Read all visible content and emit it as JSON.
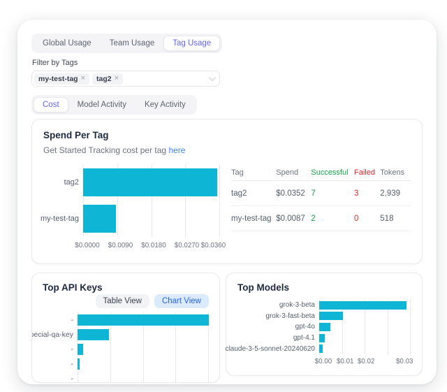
{
  "tabs_primary": {
    "items": [
      {
        "label": "Global Usage",
        "active": false
      },
      {
        "label": "Team Usage",
        "active": false
      },
      {
        "label": "Tag Usage",
        "active": true
      }
    ]
  },
  "filter": {
    "label": "Filter by Tags",
    "chips": [
      {
        "label": "my-test-tag"
      },
      {
        "label": "tag2"
      }
    ]
  },
  "icons": {
    "close": "×",
    "chevron_down": "chevron-down"
  },
  "tabs_secondary": {
    "items": [
      {
        "label": "Cost",
        "active": true
      },
      {
        "label": "Model Activity",
        "active": false
      },
      {
        "label": "Key Activity",
        "active": false
      }
    ]
  },
  "spend_card": {
    "title": "Spend Per Tag",
    "subtitle_text": "Get Started Tracking cost per tag",
    "subtitle_link": "here",
    "table": {
      "headers": [
        {
          "label": "Tag",
          "tone": "default"
        },
        {
          "label": "Spend",
          "tone": "default"
        },
        {
          "label": "Successful",
          "tone": "green"
        },
        {
          "label": "Failed",
          "tone": "red"
        },
        {
          "label": "Tokens",
          "tone": "default"
        }
      ],
      "rows": [
        {
          "cells": [
            {
              "text": "tag2",
              "tone": "default"
            },
            {
              "text": "$0.0352",
              "tone": "default"
            },
            {
              "text": "7",
              "tone": "green"
            },
            {
              "text": "3",
              "tone": "red"
            },
            {
              "text": "2,939",
              "tone": "default"
            }
          ]
        },
        {
          "cells": [
            {
              "text": "my-test-tag",
              "tone": "default"
            },
            {
              "text": "$0.0087",
              "tone": "default"
            },
            {
              "text": "2",
              "tone": "green"
            },
            {
              "text": "0",
              "tone": "red"
            },
            {
              "text": "518",
              "tone": "default"
            }
          ]
        }
      ]
    }
  },
  "top_api_keys": {
    "title": "Top API Keys",
    "view_buttons": [
      {
        "label": "Table View",
        "active": false
      },
      {
        "label": "Chart View",
        "active": true
      }
    ]
  },
  "top_models": {
    "title": "Top Models"
  },
  "colors": {
    "accent_indigo": "#6366f1",
    "bar_cyan": "#0eb5d5",
    "link_blue": "#3b82f6",
    "success_green": "#16a34a",
    "fail_red": "#dc2626",
    "toggle_active_bg": "#dbeafe",
    "toggle_active_text": "#2563eb"
  },
  "chart_data": [
    {
      "id": "spend-per-tag",
      "type": "bar",
      "orientation": "horizontal",
      "title": "Spend Per Tag",
      "categories": [
        "tag2",
        "my-test-tag"
      ],
      "values": [
        0.0352,
        0.0087
      ],
      "value_unit": "USD",
      "xlim": [
        0,
        0.036
      ],
      "x_ticks": [
        {
          "label": "$0.0000",
          "pos": 0
        },
        {
          "label": "$0.0090",
          "pos": 25
        },
        {
          "label": "$0.0180",
          "pos": 50
        },
        {
          "label": "$0.0270",
          "pos": 75
        },
        {
          "label": "$0.0360",
          "pos": 95
        }
      ],
      "grid": true,
      "bar_color": "#0eb5d5"
    },
    {
      "id": "top-api-keys",
      "type": "bar",
      "orientation": "horizontal",
      "title": "Top API Keys",
      "categories": [
        "-",
        "pecial-qa-key",
        "-",
        "-",
        "-"
      ],
      "values": [
        0.036,
        0.0087,
        0.0016,
        0.0006,
        0
      ],
      "value_unit": "USD",
      "xlim": [
        0,
        0.036
      ],
      "x_ticks": null,
      "grid": true,
      "bar_color": "#0eb5d5"
    },
    {
      "id": "top-models",
      "type": "bar",
      "orientation": "horizontal",
      "title": "Top Models",
      "categories": [
        "grok-3-beta",
        "grok-3-fast-beta",
        "gpt-4o",
        "gpt-4.1",
        "claude-3-5-sonnet-20240620"
      ],
      "values": [
        0.0295,
        0.008,
        0.0039,
        0.0019,
        0.0011
      ],
      "value_unit": "USD",
      "xlim": [
        0,
        0.031
      ],
      "x_ticks": [
        {
          "label": "$0.00",
          "pos": 0
        },
        {
          "label": "$0.01",
          "pos": 25
        },
        {
          "label": "$0.02",
          "pos": 49
        },
        {
          "label": "$0.03",
          "pos": 93
        }
      ],
      "grid": true,
      "bar_color": "#0eb5d5"
    }
  ]
}
